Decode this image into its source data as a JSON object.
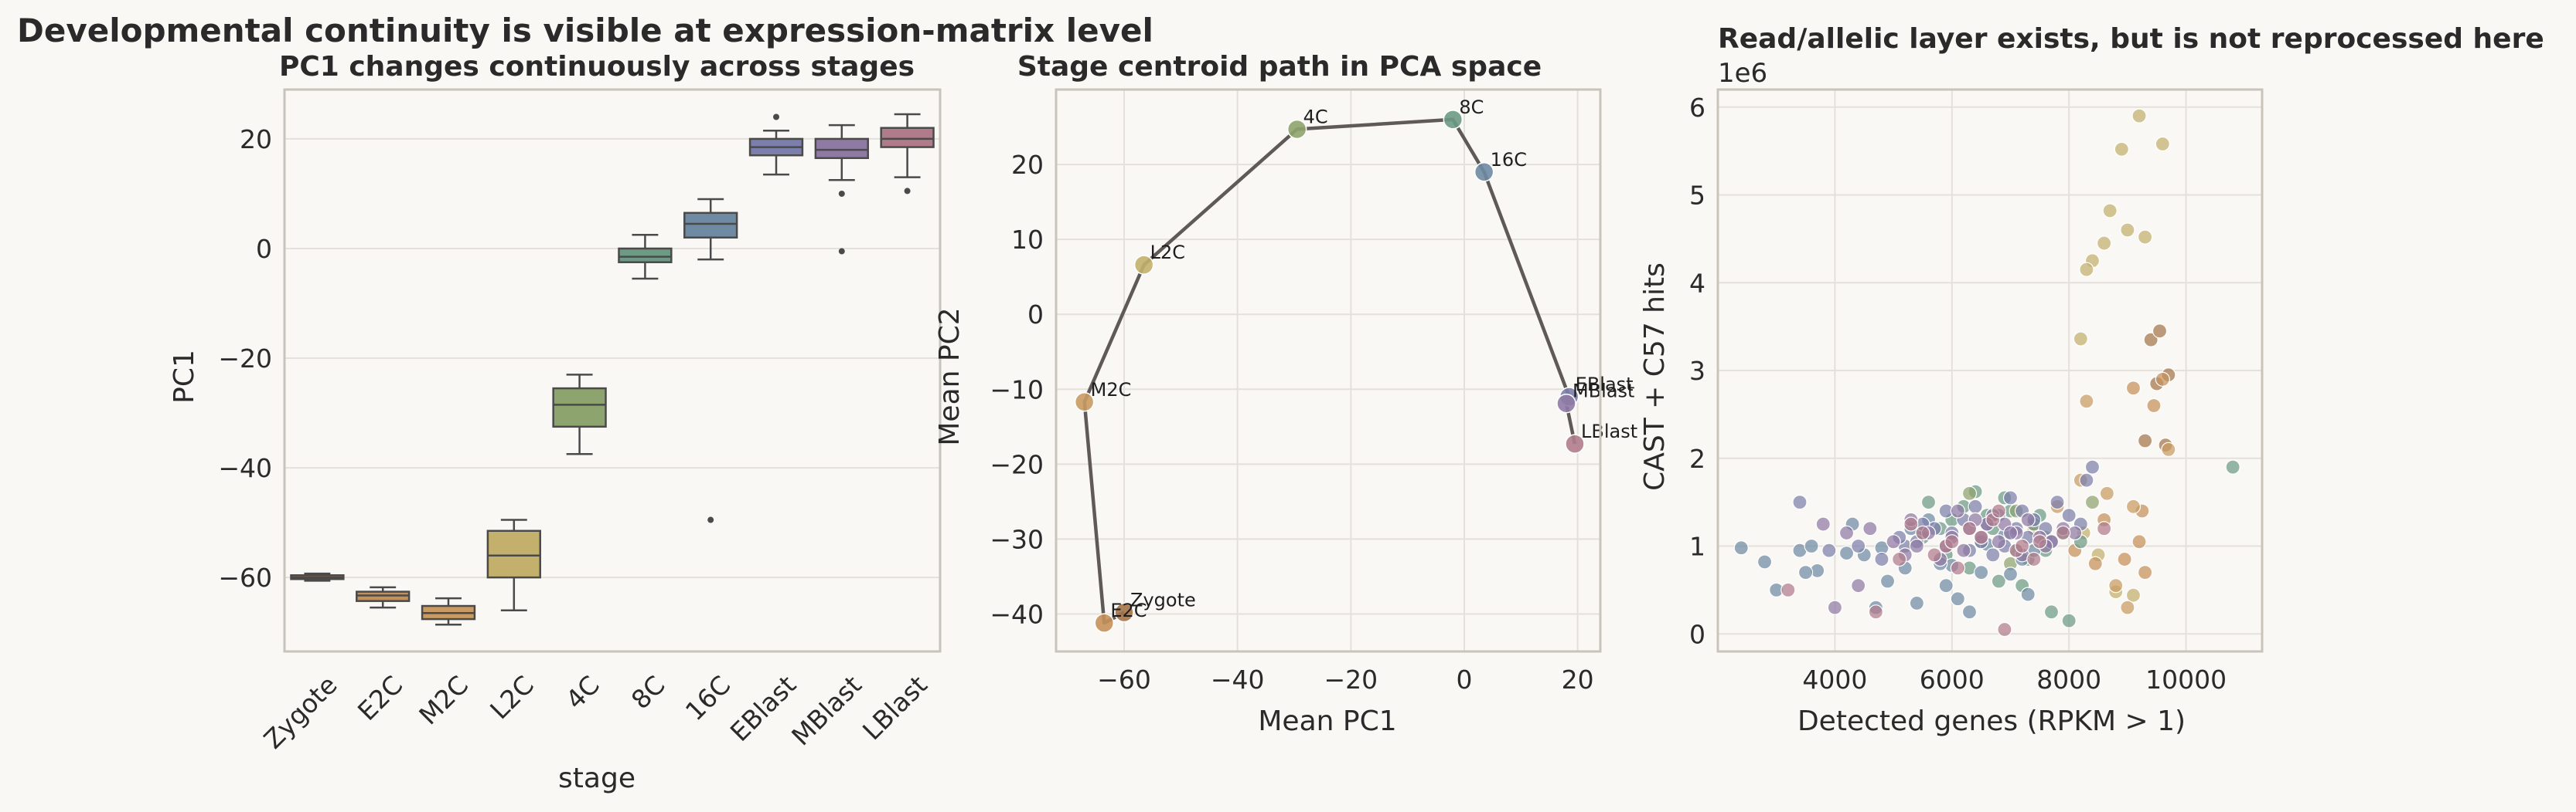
{
  "suptitle": "Developmental continuity is visible at expression-matrix level",
  "colors": {
    "background": "#faf8f5",
    "axes_border": "#c8c3bb",
    "grid": "#e4e0da",
    "text": "#2a2a2a",
    "path_line": "#5f5a55"
  },
  "stage_colors": {
    "Zygote": "#a4744a",
    "E2C": "#c5905a",
    "M2C": "#c99b62",
    "L2C": "#c2b06c",
    "4C": "#8ea46e",
    "8C": "#6c9a85",
    "16C": "#6f8aa3",
    "EBlast": "#7c7fab",
    "MBlast": "#8f7aa5",
    "LBlast": "#b07c8c"
  },
  "chart_data": [
    {
      "type": "box",
      "title": "PC1 changes continuously across stages",
      "xlabel": "stage",
      "ylabel": "PC1",
      "ylim": [
        -73.5,
        29
      ],
      "yticks": [
        20,
        0,
        -20,
        -40,
        -60
      ],
      "ytick_labels": [
        "20",
        "0",
        "−20",
        "−40",
        "−60"
      ],
      "grid": true,
      "categories": [
        "Zygote",
        "E2C",
        "M2C",
        "L2C",
        "4C",
        "8C",
        "16C",
        "EBlast",
        "MBlast",
        "LBlast"
      ],
      "boxes": [
        {
          "stage": "Zygote",
          "whislo": -60.6,
          "q1": -60.3,
          "med": -60.0,
          "q3": -59.6,
          "whishi": -59.3,
          "fliers": []
        },
        {
          "stage": "E2C",
          "whislo": -65.5,
          "q1": -64.3,
          "med": -63.3,
          "q3": -62.6,
          "whishi": -61.8,
          "fliers": []
        },
        {
          "stage": "M2C",
          "whislo": -68.6,
          "q1": -67.6,
          "med": -66.5,
          "q3": -65.2,
          "whishi": -63.8,
          "fliers": []
        },
        {
          "stage": "L2C",
          "whislo": -66.0,
          "q1": -60.0,
          "med": -56.0,
          "q3": -51.5,
          "whishi": -49.5,
          "fliers": []
        },
        {
          "stage": "4C",
          "whislo": -37.5,
          "q1": -32.5,
          "med": -28.5,
          "q3": -25.5,
          "whishi": -23.0,
          "fliers": []
        },
        {
          "stage": "8C",
          "whislo": -5.5,
          "q1": -2.5,
          "med": -1.5,
          "q3": 0.0,
          "whishi": 2.5,
          "fliers": []
        },
        {
          "stage": "16C",
          "whislo": -2.0,
          "q1": 2.0,
          "med": 4.5,
          "q3": 6.5,
          "whishi": 9.0,
          "fliers": [
            -49.5
          ]
        },
        {
          "stage": "EBlast",
          "whislo": 13.5,
          "q1": 17.0,
          "med": 18.5,
          "q3": 20.0,
          "whishi": 21.5,
          "fliers": [
            24.0
          ]
        },
        {
          "stage": "MBlast",
          "whislo": 12.5,
          "q1": 16.5,
          "med": 18.0,
          "q3": 20.0,
          "whishi": 22.5,
          "fliers": [
            10.0,
            -0.5
          ]
        },
        {
          "stage": "LBlast",
          "whislo": 13.0,
          "q1": 18.5,
          "med": 20.0,
          "q3": 22.0,
          "whishi": 24.5,
          "fliers": [
            10.5
          ]
        }
      ]
    },
    {
      "type": "line",
      "title": "Stage centroid path in PCA space",
      "xlabel": "Mean PC1",
      "ylabel": "Mean PC2",
      "xlim": [
        -72,
        24
      ],
      "ylim": [
        -45,
        30
      ],
      "xticks": [
        -60,
        -40,
        -20,
        0,
        20
      ],
      "xtick_labels": [
        "−60",
        "−40",
        "−20",
        "0",
        "20"
      ],
      "yticks": [
        20,
        10,
        0,
        -10,
        -20,
        -30,
        -40
      ],
      "ytick_labels": [
        "20",
        "10",
        "0",
        "−10",
        "−20",
        "−30",
        "−40"
      ],
      "grid": true,
      "points": [
        {
          "label": "Zygote",
          "x": -60.0,
          "y": -39.8
        },
        {
          "label": "E2C",
          "x": -63.5,
          "y": -41.2
        },
        {
          "label": "M2C",
          "x": -67.0,
          "y": -11.7
        },
        {
          "label": "L2C",
          "x": -56.5,
          "y": 6.6
        },
        {
          "label": "4C",
          "x": -29.5,
          "y": 24.7
        },
        {
          "label": "8C",
          "x": -2.0,
          "y": 26.0
        },
        {
          "label": "16C",
          "x": 3.5,
          "y": 19.0
        },
        {
          "label": "EBlast",
          "x": 18.5,
          "y": -11.0
        },
        {
          "label": "MBlast",
          "x": 18.0,
          "y": -11.9
        },
        {
          "label": "LBlast",
          "x": 19.5,
          "y": -17.3
        }
      ]
    },
    {
      "type": "scatter",
      "title": "Read/allelic layer exists, but is not reprocessed here",
      "xlabel": "Detected genes (RPKM > 1)",
      "ylabel": "CAST + C57 hits",
      "offset_text": "1e6",
      "xlim": [
        2000,
        11300
      ],
      "ylim": [
        -0.2,
        6.2
      ],
      "xticks": [
        4000,
        6000,
        8000,
        10000
      ],
      "xtick_labels": [
        "4000",
        "6000",
        "8000",
        "10000"
      ],
      "yticks": [
        0,
        1,
        2,
        3,
        4,
        5,
        6
      ],
      "ytick_labels": [
        "0",
        "1",
        "2",
        "3",
        "4",
        "5",
        "6"
      ],
      "grid": true,
      "series": [
        {
          "stage": "L2C",
          "x": [
            9200,
            9600,
            8900,
            9000,
            8700,
            8600,
            8400,
            8300,
            9300,
            8200,
            8800,
            9100,
            8500,
            8250
          ],
          "y": [
            5.9,
            5.58,
            5.52,
            4.6,
            4.82,
            4.45,
            4.25,
            4.15,
            4.52,
            3.36,
            0.48,
            0.44,
            0.9,
            1.15
          ]
        },
        {
          "stage": "Zygote",
          "x": [
            9400,
            9550,
            9500,
            9700,
            9650,
            9300
          ],
          "y": [
            3.35,
            3.45,
            2.85,
            2.95,
            2.15,
            2.2
          ]
        },
        {
          "stage": "E2C",
          "x": [
            9100,
            9600,
            9450,
            9250,
            9200,
            8950,
            8600,
            8100,
            8450,
            7400,
            9300
          ],
          "y": [
            2.8,
            2.9,
            2.6,
            1.4,
            1.05,
            0.85,
            1.3,
            0.95,
            0.8,
            1.2,
            0.7
          ]
        },
        {
          "stage": "M2C",
          "x": [
            9700,
            8300,
            8200,
            8650,
            9100,
            8800,
            7800,
            9000
          ],
          "y": [
            2.1,
            2.65,
            1.75,
            1.6,
            1.45,
            0.55,
            1.45,
            0.3
          ]
        },
        {
          "stage": "8C",
          "x": [
            10800,
            6400,
            6900,
            7000,
            7500,
            7600,
            6200,
            6000,
            5800,
            5500,
            7200,
            7700,
            8000,
            7100,
            6500,
            6700,
            7300,
            8200,
            6600,
            6300,
            5900,
            7900,
            6800,
            7400,
            5600
          ],
          "y": [
            1.9,
            1.62,
            1.55,
            1.4,
            1.35,
            0.95,
            1.45,
            1.3,
            1.2,
            1.1,
            0.55,
            0.25,
            0.15,
            0.95,
            1.05,
            1.2,
            0.85,
            1.05,
            1.35,
            0.75,
            0.9,
            1.15,
            0.6,
            1.25,
            1.5
          ]
        },
        {
          "stage": "4C",
          "x": [
            6300,
            7100,
            7600,
            8400,
            7000
          ],
          "y": [
            1.6,
            1.4,
            1.1,
            1.5,
            0.8
          ]
        },
        {
          "stage": "16C",
          "x": [
            2400,
            2800,
            3400,
            3700,
            3500,
            4200,
            4500,
            4800,
            5300,
            5600,
            4700,
            5400,
            6100,
            6300,
            5900,
            5200,
            4900,
            6600,
            7400,
            7200,
            6500,
            5500,
            4300,
            3600,
            3000,
            7300,
            6000,
            7000,
            5800,
            6900
          ],
          "y": [
            0.98,
            0.82,
            0.95,
            0.72,
            0.7,
            0.92,
            0.9,
            0.98,
            1.2,
            1.3,
            0.3,
            0.35,
            0.4,
            0.25,
            0.55,
            0.75,
            0.6,
            1.02,
            0.95,
            0.85,
            0.7,
            1.15,
            1.25,
            1.0,
            0.5,
            0.45,
            0.78,
            0.68,
            0.8,
            1.12
          ]
        },
        {
          "stage": "EBlast",
          "x": [
            3400,
            3900,
            4400,
            4800,
            5200,
            5400,
            5700,
            6000,
            6200,
            6400,
            6600,
            6800,
            7000,
            7200,
            7400,
            7600,
            7800,
            8000,
            8200,
            8400,
            5100,
            5900,
            6500,
            7100,
            7700,
            6900,
            6300,
            7300,
            6700,
            5500,
            8300
          ],
          "y": [
            1.5,
            0.95,
            1.0,
            0.85,
            1.0,
            1.05,
            1.2,
            1.15,
            1.3,
            1.45,
            1.25,
            1.35,
            1.55,
            1.4,
            1.3,
            1.2,
            1.5,
            1.35,
            1.25,
            1.9,
            1.1,
            1.4,
            1.05,
            1.2,
            1.05,
            1.0,
            0.95,
            1.1,
            0.9,
            1.25,
            1.75
          ]
        },
        {
          "stage": "MBlast",
          "x": [
            3800,
            4200,
            4600,
            5000,
            5300,
            5600,
            5900,
            6100,
            6300,
            6500,
            6700,
            6900,
            7100,
            7300,
            7500,
            7700,
            7900,
            8100,
            4000,
            4400,
            5200,
            5800,
            6200,
            6800,
            7200,
            7600,
            6000,
            6600,
            7000,
            5400,
            6400
          ],
          "y": [
            1.25,
            1.15,
            1.2,
            1.05,
            1.3,
            1.15,
            1.0,
            1.4,
            1.2,
            1.1,
            1.35,
            1.25,
            1.15,
            1.3,
            1.1,
            1.05,
            1.2,
            1.15,
            0.3,
            0.55,
            0.9,
            0.85,
            0.95,
            1.05,
            0.9,
            1.0,
            1.1,
            1.25,
            1.15,
            1.0,
            1.3
          ]
        },
        {
          "stage": "LBlast",
          "x": [
            3200,
            4700,
            5100,
            5500,
            5900,
            6300,
            6700,
            7100,
            7500,
            7900,
            6900,
            6100,
            5300,
            7400,
            6500,
            5700,
            6800,
            7200,
            8600,
            6000
          ],
          "y": [
            0.5,
            0.25,
            0.85,
            1.15,
            1.0,
            1.2,
            1.3,
            0.95,
            1.05,
            1.15,
            0.05,
            0.75,
            1.25,
            0.85,
            1.1,
            0.9,
            1.4,
            1.0,
            1.2,
            1.05
          ]
        }
      ]
    }
  ]
}
